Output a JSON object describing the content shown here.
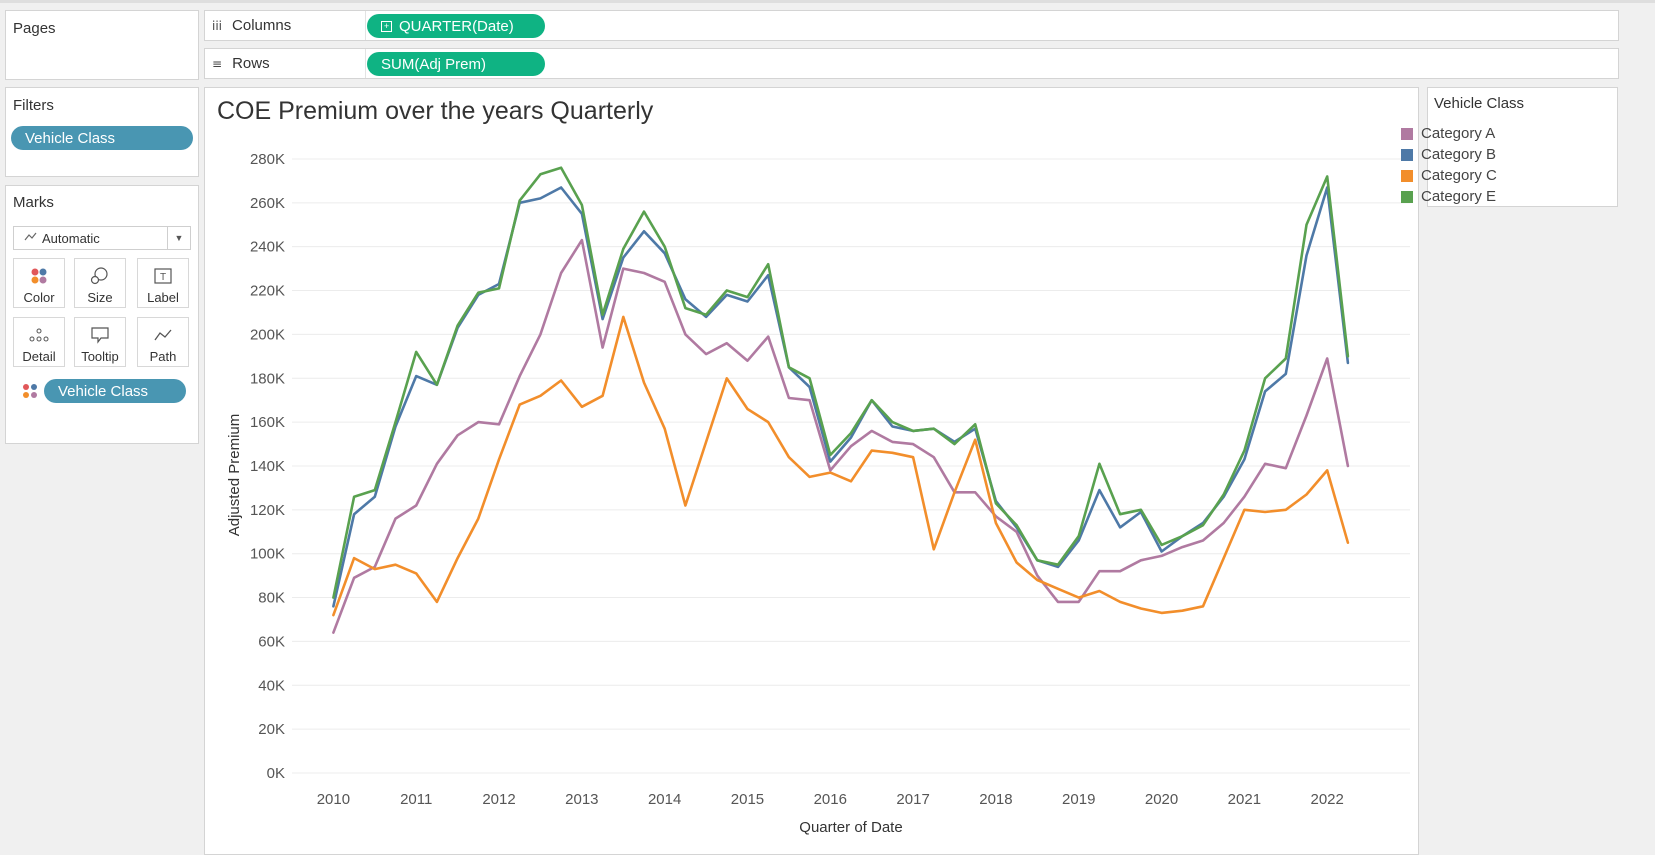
{
  "pages_card": {
    "title": "Pages"
  },
  "shelves": {
    "columns": {
      "label": "Columns",
      "icon": "columns-icon",
      "pill": "QUARTER(Date)",
      "pill_icon": "expand-plus-icon"
    },
    "rows": {
      "label": "Rows",
      "icon": "rows-icon",
      "pill": "SUM(Adj Prem)"
    }
  },
  "filters_card": {
    "title": "Filters",
    "pill": "Vehicle Class"
  },
  "marks_card": {
    "title": "Marks",
    "mark_type": "Automatic",
    "mark_type_icon": "line-mark-icon",
    "buttons": [
      {
        "label": "Color",
        "icon": "color-dots-icon"
      },
      {
        "label": "Size",
        "icon": "size-circles-icon"
      },
      {
        "label": "Label",
        "icon": "text-label-icon"
      },
      {
        "label": "Detail",
        "icon": "detail-dots-icon"
      },
      {
        "label": "Tooltip",
        "icon": "tooltip-icon"
      },
      {
        "label": "Path",
        "icon": "path-line-icon"
      }
    ],
    "color_pill": "Vehicle Class",
    "color_pill_icon": "color-dots-icon"
  },
  "legend": {
    "title": "Vehicle Class",
    "items": [
      {
        "label": "Category A",
        "color": "#b07aa1"
      },
      {
        "label": "Category B",
        "color": "#4e79a7"
      },
      {
        "label": "Category C",
        "color": "#f28e2b"
      },
      {
        "label": "Category E",
        "color": "#59a14f"
      }
    ]
  },
  "chart_data": {
    "type": "line",
    "title": "COE Premium over the years Quarterly",
    "xlabel": "Quarter of Date",
    "ylabel": "Adjusted Premium",
    "x_tick_labels": [
      "2010",
      "2011",
      "2012",
      "2013",
      "2014",
      "2015",
      "2016",
      "2017",
      "2018",
      "2019",
      "2020",
      "2021",
      "2022"
    ],
    "y_tick_labels": [
      "0K",
      "20K",
      "40K",
      "60K",
      "80K",
      "100K",
      "120K",
      "140K",
      "160K",
      "180K",
      "200K",
      "220K",
      "240K",
      "260K",
      "280K"
    ],
    "ylim": [
      0,
      285000
    ],
    "xlim": [
      "2009 Q3",
      "2023 Q1"
    ],
    "grid": true,
    "x": [
      "2010 Q1",
      "2010 Q2",
      "2010 Q3",
      "2010 Q4",
      "2011 Q1",
      "2011 Q2",
      "2011 Q3",
      "2011 Q4",
      "2012 Q1",
      "2012 Q2",
      "2012 Q3",
      "2012 Q4",
      "2013 Q1",
      "2013 Q2",
      "2013 Q3",
      "2013 Q4",
      "2014 Q1",
      "2014 Q2",
      "2014 Q3",
      "2014 Q4",
      "2015 Q1",
      "2015 Q2",
      "2015 Q3",
      "2015 Q4",
      "2016 Q1",
      "2016 Q2",
      "2016 Q3",
      "2016 Q4",
      "2017 Q1",
      "2017 Q2",
      "2017 Q3",
      "2017 Q4",
      "2018 Q1",
      "2018 Q2",
      "2018 Q3",
      "2018 Q4",
      "2019 Q1",
      "2019 Q2",
      "2019 Q3",
      "2019 Q4",
      "2020 Q1",
      "2020 Q2",
      "2020 Q3",
      "2020 Q4",
      "2021 Q1",
      "2021 Q2",
      "2021 Q3",
      "2021 Q4",
      "2022 Q1",
      "2022 Q2"
    ],
    "series": [
      {
        "name": "Category A",
        "color": "#b07aa1",
        "values": [
          64000,
          89000,
          94000,
          116000,
          122000,
          141000,
          154000,
          160000,
          159000,
          181000,
          200000,
          228000,
          243000,
          194000,
          230000,
          228000,
          224000,
          200000,
          191000,
          196000,
          188000,
          199000,
          171000,
          170000,
          138000,
          149000,
          156000,
          151000,
          150000,
          144000,
          128000,
          128000,
          117000,
          110000,
          90000,
          78000,
          78000,
          92000,
          92000,
          97000,
          99000,
          103000,
          106000,
          114000,
          126000,
          141000,
          139000,
          163000,
          189000,
          140000
        ]
      },
      {
        "name": "Category B",
        "color": "#4e79a7",
        "values": [
          76000,
          118000,
          126000,
          158000,
          181000,
          177000,
          203000,
          218000,
          223000,
          260000,
          262000,
          267000,
          255000,
          207000,
          235000,
          247000,
          237000,
          216000,
          208000,
          218000,
          215000,
          227000,
          185000,
          176000,
          142000,
          153000,
          170000,
          158000,
          156000,
          157000,
          151000,
          157000,
          124000,
          112000,
          97000,
          94000,
          106000,
          129000,
          112000,
          119000,
          101000,
          108000,
          114000,
          126000,
          143000,
          174000,
          182000,
          236000,
          267000,
          187000
        ]
      },
      {
        "name": "Category C",
        "color": "#f28e2b",
        "values": [
          72000,
          98000,
          93000,
          95000,
          91000,
          78000,
          98000,
          116000,
          143000,
          168000,
          172000,
          179000,
          167000,
          172000,
          208000,
          178000,
          157000,
          122000,
          151000,
          180000,
          166000,
          160000,
          144000,
          135000,
          137000,
          133000,
          147000,
          146000,
          144000,
          102000,
          128000,
          152000,
          114000,
          96000,
          88000,
          84000,
          80000,
          83000,
          78000,
          75000,
          73000,
          74000,
          76000,
          98000,
          120000,
          119000,
          120000,
          127000,
          138000,
          105000
        ]
      },
      {
        "name": "Category E",
        "color": "#59a14f",
        "values": [
          80000,
          126000,
          129000,
          160000,
          192000,
          177000,
          204000,
          219000,
          221000,
          261000,
          273000,
          276000,
          259000,
          209000,
          239000,
          256000,
          240000,
          212000,
          209000,
          220000,
          217000,
          232000,
          185000,
          180000,
          145000,
          155000,
          170000,
          160000,
          156000,
          157000,
          150000,
          159000,
          123000,
          113000,
          97000,
          95000,
          108000,
          141000,
          118000,
          120000,
          104000,
          108000,
          113000,
          127000,
          147000,
          180000,
          189000,
          250000,
          272000,
          190000
        ]
      }
    ]
  }
}
